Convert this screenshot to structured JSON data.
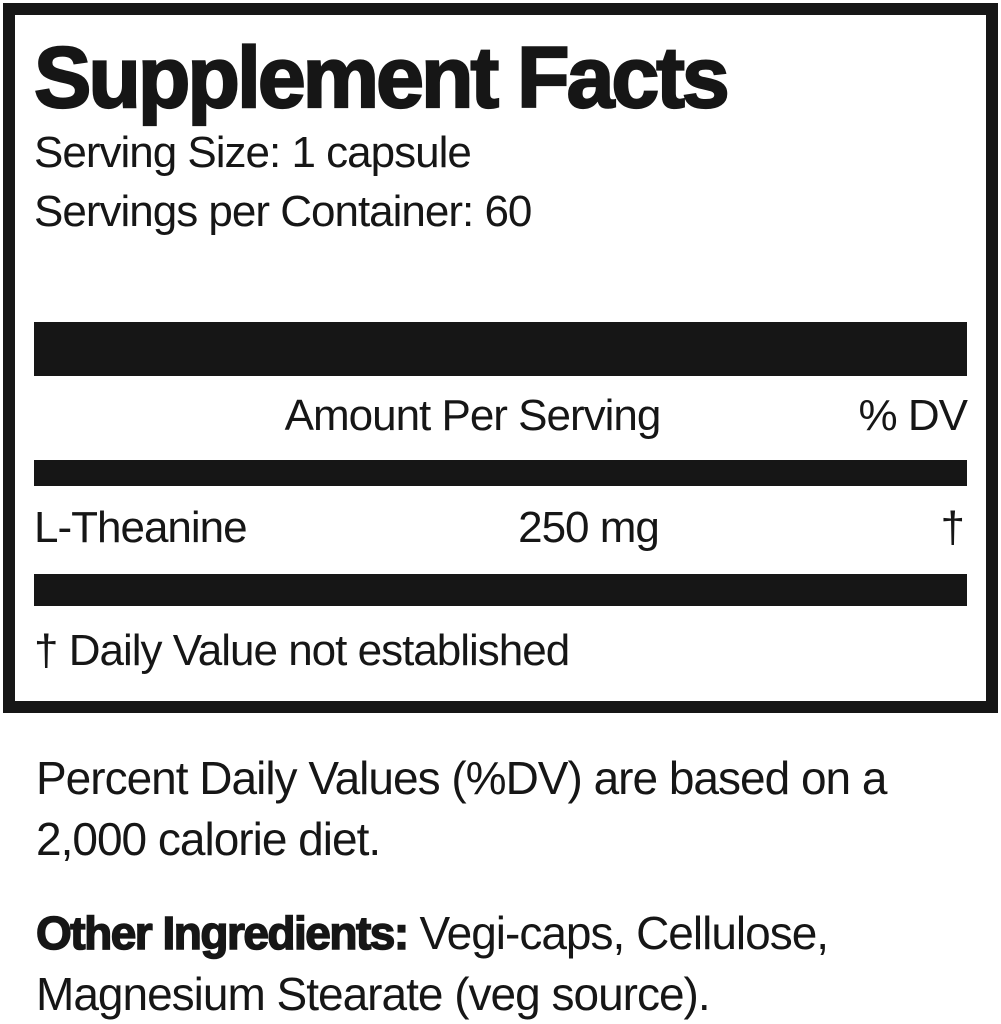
{
  "supplement_facts": {
    "title": "Supplement Facts",
    "serving_size": "Serving Size: 1 capsule",
    "servings_per_container": "Servings per Container: 60",
    "header": {
      "amount_col": "Amount Per Serving",
      "dv_col": "% DV"
    },
    "rows": [
      {
        "name": "L-Theanine",
        "amount": "250 mg",
        "dv": "†"
      }
    ],
    "footnote": "† Daily Value not established"
  },
  "footer": {
    "dv_note_line1": "Percent Daily Values (%DV) are based on a",
    "dv_note_line2": "2,000 calorie diet.",
    "other_ingredients_label": "Other Ingredients:",
    "other_ingredients_line1": " Vegi-caps, Cellulose,",
    "other_ingredients_line2": "Magnesium Stearate (veg source)."
  },
  "colors": {
    "ink": "#161616",
    "background": "#ffffff"
  }
}
